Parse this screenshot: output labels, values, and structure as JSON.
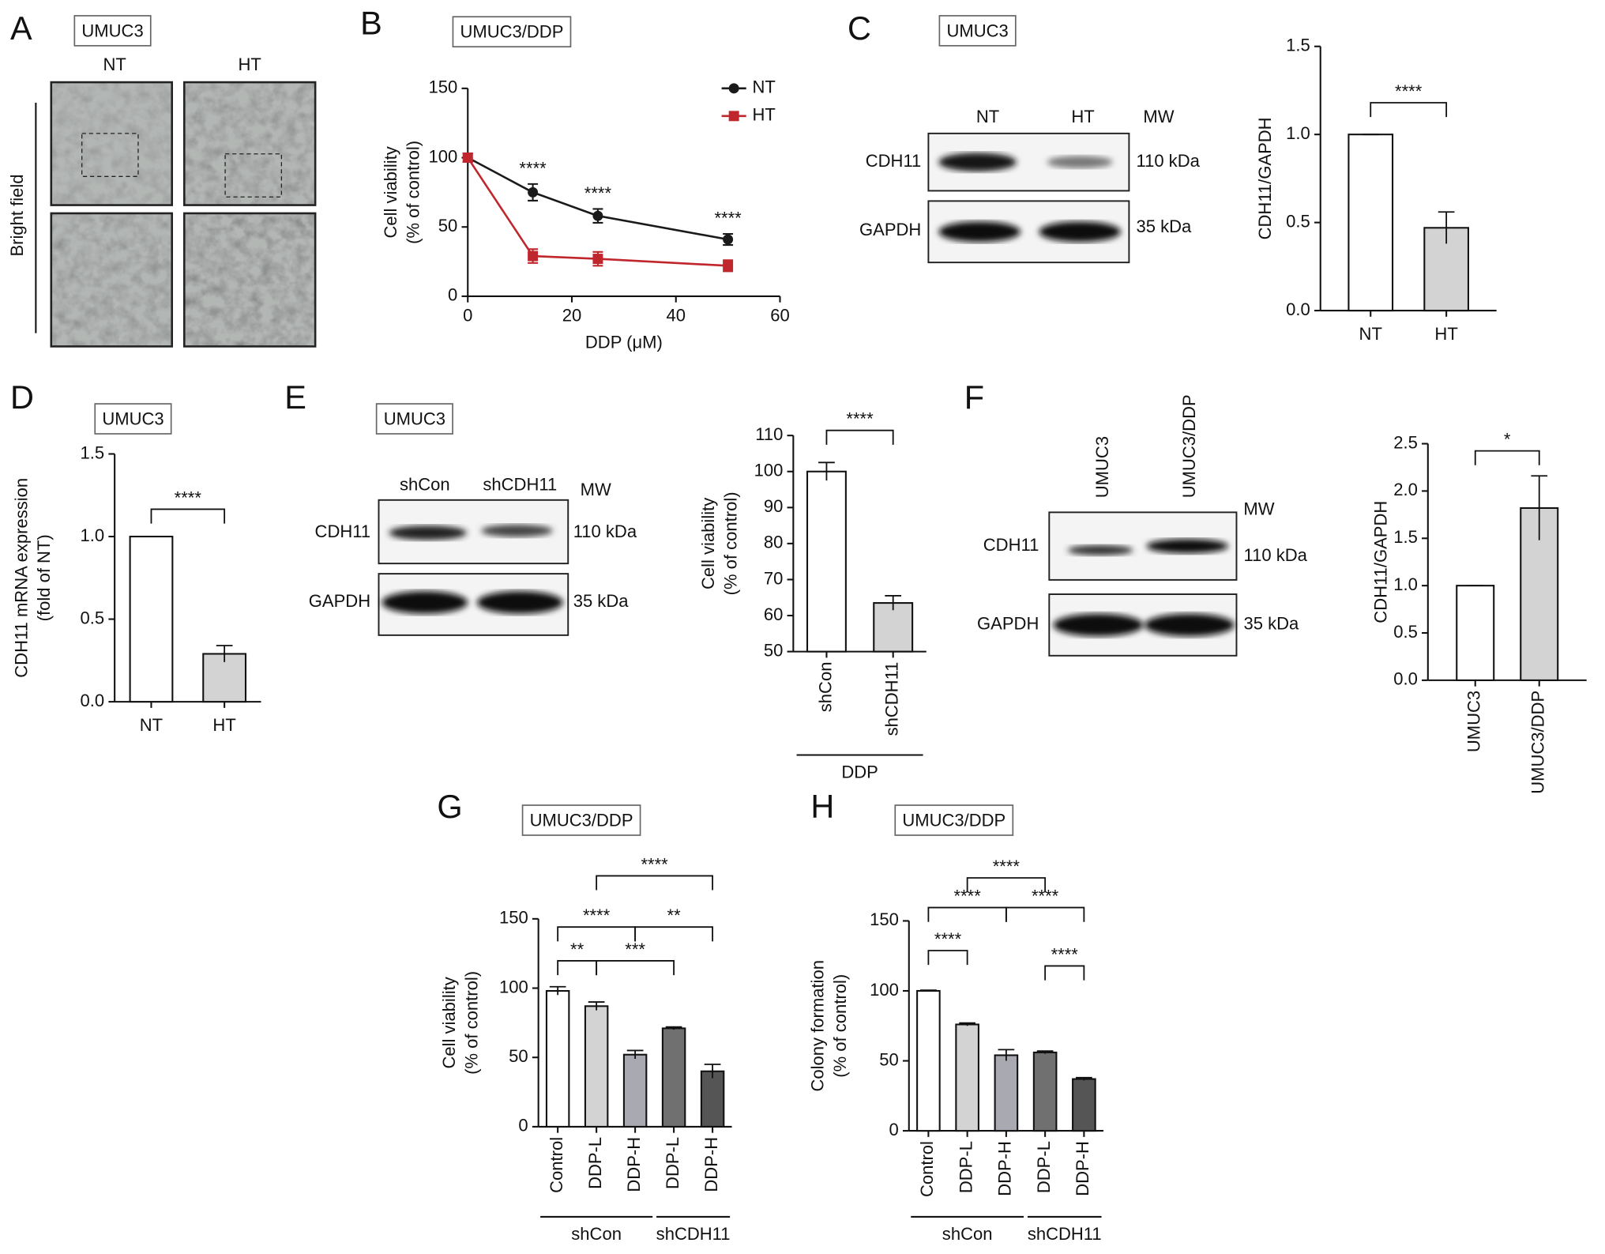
{
  "figure": {
    "panel_labels": [
      "A",
      "B",
      "C",
      "D",
      "E",
      "F",
      "G",
      "H"
    ],
    "micrograph": {
      "title": "UMUC3",
      "columns": [
        "NT",
        "HT"
      ],
      "row_label": "Bright field"
    },
    "blots": [
      {
        "title": "UMUC3",
        "lanes": [
          "NT",
          "HT"
        ],
        "mw_header": "MW",
        "rows": [
          {
            "protein": "CDH11",
            "mw": "110 kDa"
          },
          {
            "protein": "GAPDH",
            "mw": "35 kDa"
          }
        ]
      },
      {
        "title": "UMUC3",
        "lanes": [
          "shCon",
          "shCDH11"
        ],
        "mw_header": "MW",
        "rows": [
          {
            "protein": "CDH11",
            "mw": "110 kDa"
          },
          {
            "protein": "GAPDH",
            "mw": "35 kDa"
          }
        ]
      },
      {
        "lanes": [
          "UMUC3",
          "UMUC3/DDP"
        ],
        "mw_header": "MW",
        "rows": [
          {
            "protein": "CDH11",
            "mw": "110 kDa"
          },
          {
            "protein": "GAPDH",
            "mw": "35 kDa"
          }
        ]
      }
    ]
  },
  "chart_data": [
    {
      "type": "line",
      "title": "UMUC3/DDP",
      "x": [
        0,
        12.5,
        25,
        50
      ],
      "series": [
        {
          "name": "NT",
          "color": "#1a1a1a",
          "marker": "circle",
          "values": [
            100,
            75,
            58,
            41
          ],
          "errors": [
            3,
            6,
            5,
            4
          ]
        },
        {
          "name": "HT",
          "color": "#c0272d",
          "marker": "square",
          "values": [
            100,
            29,
            27,
            22
          ],
          "errors": [
            3,
            5,
            5,
            4
          ]
        }
      ],
      "xlim": [
        0,
        60
      ],
      "xticks": [
        0,
        20,
        40,
        60
      ],
      "ylim": [
        0,
        150
      ],
      "yticks": [
        0,
        50,
        100,
        150
      ],
      "xlabel": "DDP (μM)",
      "ylabel": [
        "Cell viability",
        "(% of control)"
      ],
      "annotations": [
        "****",
        "****",
        "****"
      ],
      "legend": "upper right"
    },
    {
      "type": "bar",
      "categories": [
        "NT",
        "HT"
      ],
      "values": [
        1.0,
        0.47
      ],
      "errors": [
        0,
        0.09
      ],
      "colors": [
        "#ffffff",
        "#d3d3d3"
      ],
      "ylim": [
        0,
        1.5
      ],
      "yticks": [
        {
          "value": 0,
          "label": "0.0"
        },
        0.5,
        {
          "value": 1,
          "label": "1.0"
        },
        1.5
      ],
      "ylabel": [
        "CDH11/GAPDH"
      ],
      "annotations": [
        "****"
      ]
    },
    {
      "type": "bar",
      "title": "UMUC3",
      "categories": [
        "NT",
        "HT"
      ],
      "values": [
        1.0,
        0.29
      ],
      "errors": [
        0,
        0.05
      ],
      "colors": [
        "#ffffff",
        "#d3d3d3"
      ],
      "ylim": [
        0,
        1.5
      ],
      "yticks": [
        {
          "value": 0,
          "label": "0.0"
        },
        0.5,
        {
          "value": 1,
          "label": "1.0"
        },
        1.5
      ],
      "ylabel": [
        "CDH11 mRNA expression",
        "(fold of NT)"
      ],
      "annotations": [
        "****"
      ]
    },
    {
      "type": "bar",
      "categories": [
        "shCon",
        "shCDH11"
      ],
      "values": [
        100,
        63.5
      ],
      "errors": [
        2.5,
        2
      ],
      "colors": [
        "#ffffff",
        "#d3d3d3"
      ],
      "ylim": [
        50,
        110
      ],
      "yticks": [
        50,
        60,
        70,
        80,
        90,
        100,
        110
      ],
      "ylabel": [
        "Cell viability",
        "(% of control)"
      ],
      "annotations": [
        "****"
      ],
      "group_labels": [
        "DDP"
      ]
    },
    {
      "type": "bar",
      "categories": [
        "UMUC3",
        "UMUC3/DDP"
      ],
      "values": [
        1.0,
        1.82
      ],
      "errors": [
        0,
        0.34
      ],
      "colors": [
        "#ffffff",
        "#d3d3d3"
      ],
      "ylim": [
        0,
        2.5
      ],
      "yticks": [
        {
          "value": 0,
          "label": "0.0"
        },
        0.5,
        {
          "value": 1,
          "label": "1.0"
        },
        1.5,
        {
          "value": 2,
          "label": "2.0"
        },
        2.5
      ],
      "ylabel": [
        "CDH11/GAPDH"
      ],
      "annotations": [
        "*"
      ]
    },
    {
      "type": "bar",
      "title": "UMUC3/DDP",
      "categories": [
        "Control",
        "DDP-L",
        "DDP-H",
        "DDP-L",
        "DDP-H"
      ],
      "values": [
        98,
        87,
        52,
        71,
        40
      ],
      "errors": [
        3,
        3,
        3,
        1,
        5
      ],
      "colors": [
        "#ffffff",
        "#d3d3d3",
        "#a9a9b2",
        "#707070",
        "#555555"
      ],
      "ylim": [
        0,
        150
      ],
      "yticks": [
        0,
        50,
        100,
        150
      ],
      "ylabel": [
        "Cell viability",
        "(% of control)"
      ],
      "annotations": [
        "****",
        "****",
        "**",
        "**",
        "***"
      ],
      "group_labels": [
        "shCon",
        "shCDH11"
      ]
    },
    {
      "type": "bar",
      "title": "UMUC3/DDP",
      "categories": [
        "Control",
        "DDP-L",
        "DDP-H",
        "DDP-L",
        "DDP-H"
      ],
      "values": [
        100,
        76,
        54,
        56,
        37
      ],
      "errors": [
        0.5,
        1,
        4,
        1,
        1
      ],
      "colors": [
        "#ffffff",
        "#d3d3d3",
        "#a9a9b2",
        "#707070",
        "#555555"
      ],
      "ylim": [
        0,
        150
      ],
      "yticks": [
        0,
        50,
        100,
        150
      ],
      "ylabel": [
        "Colony formation",
        "(% of control)"
      ],
      "annotations": [
        "****",
        "****",
        "****",
        "****",
        "****"
      ],
      "group_labels": [
        "shCon",
        "shCDH11"
      ]
    }
  ]
}
